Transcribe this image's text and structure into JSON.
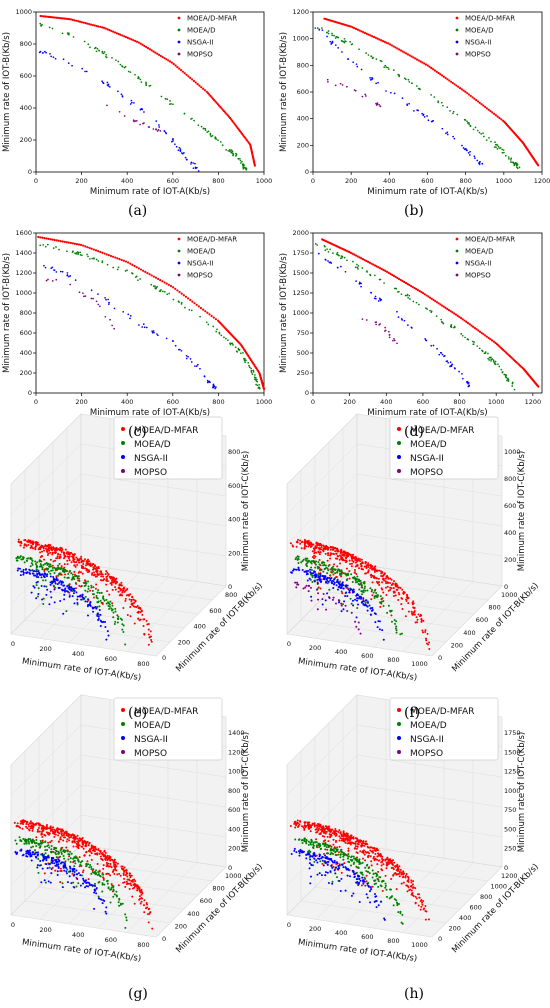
{
  "series_styles": [
    {
      "name": "MOEA/D-MFAR",
      "color": "#ff0000"
    },
    {
      "name": "MOEA/D",
      "color": "#008000"
    },
    {
      "name": "NSGA-II",
      "color": "#0000ff"
    },
    {
      "name": "MOPSO",
      "color": "#800080"
    }
  ],
  "chart_data": [
    {
      "panel": "(a)",
      "type": "scatter",
      "xlabel": "Minimum rate of IOT-A(Kb/s)",
      "ylabel": "Minimum rate of IOT-B(Kb/s)",
      "xlim": [
        0,
        1000
      ],
      "ylim": [
        0,
        1000
      ],
      "xticks": [
        0,
        200,
        400,
        600,
        800,
        1000
      ],
      "yticks": [
        0,
        200,
        400,
        600,
        800,
        1000
      ],
      "legend": [
        "MOEA/D-MFAR",
        "MOEA/D",
        "NSGA-II",
        "MOPSO"
      ],
      "series": [
        {
          "name": "MOEA/D-MFAR",
          "color": "#ff0000",
          "points": [
            [
              20,
              975
            ],
            [
              150,
              955
            ],
            [
              300,
              900
            ],
            [
              450,
              810
            ],
            [
              600,
              680
            ],
            [
              750,
              500
            ],
            [
              850,
              340
            ],
            [
              940,
              170
            ],
            [
              960,
              40
            ]
          ]
        },
        {
          "name": "MOEA/D",
          "color": "#008000",
          "points": [
            [
              20,
              920
            ],
            [
              150,
              855
            ],
            [
              300,
              740
            ],
            [
              450,
              590
            ],
            [
              600,
              420
            ],
            [
              720,
              290
            ],
            [
              830,
              160
            ],
            [
              900,
              70
            ],
            [
              920,
              10
            ]
          ]
        },
        {
          "name": "NSGA-II",
          "color": "#0000ff",
          "points": [
            [
              10,
              760
            ],
            [
              120,
              700
            ],
            [
              250,
              610
            ],
            [
              380,
              480
            ],
            [
              480,
              370
            ],
            [
              560,
              260
            ],
            [
              620,
              160
            ],
            [
              680,
              60
            ],
            [
              710,
              10
            ]
          ]
        },
        {
          "name": "MOPSO",
          "color": "#800080",
          "points": [
            [
              310,
              420
            ],
            [
              420,
              320
            ],
            [
              470,
              295
            ],
            [
              520,
              270
            ],
            [
              540,
              250
            ]
          ]
        }
      ]
    },
    {
      "panel": "(b)",
      "type": "scatter",
      "xlabel": "Minimum rate of IOT-A(Kb/s)",
      "ylabel": "Minimum rate of IOT-B(Kb/s)",
      "xlim": [
        0,
        1200
      ],
      "ylim": [
        0,
        1200
      ],
      "xticks": [
        0,
        200,
        400,
        600,
        800,
        1000,
        1200
      ],
      "yticks": [
        0,
        200,
        400,
        600,
        800,
        1000,
        1200
      ],
      "legend": [
        "MOEA/D-MFAR",
        "MOEA/D",
        "NSGA-II",
        "MOPSO"
      ],
      "series": [
        {
          "name": "MOEA/D-MFAR",
          "color": "#ff0000",
          "points": [
            [
              60,
              1150
            ],
            [
              200,
              1090
            ],
            [
              400,
              960
            ],
            [
              600,
              800
            ],
            [
              800,
              600
            ],
            [
              1000,
              380
            ],
            [
              1100,
              220
            ],
            [
              1180,
              50
            ]
          ]
        },
        {
          "name": "MOEA/D",
          "color": "#008000",
          "points": [
            [
              20,
              1090
            ],
            [
              200,
              960
            ],
            [
              400,
              780
            ],
            [
              600,
              590
            ],
            [
              800,
              380
            ],
            [
              950,
              210
            ],
            [
              1050,
              80
            ],
            [
              1080,
              20
            ]
          ]
        },
        {
          "name": "NSGA-II",
          "color": "#0000ff",
          "points": [
            [
              30,
              1080
            ],
            [
              150,
              900
            ],
            [
              300,
              700
            ],
            [
              450,
              560
            ],
            [
              600,
              400
            ],
            [
              750,
              250
            ],
            [
              850,
              100
            ],
            [
              900,
              40
            ]
          ]
        },
        {
          "name": "MOPSO",
          "color": "#800080",
          "points": [
            [
              60,
              690
            ],
            [
              150,
              650
            ],
            [
              250,
              590
            ],
            [
              330,
              520
            ],
            [
              360,
              490
            ]
          ]
        }
      ]
    },
    {
      "panel": "(c)",
      "type": "scatter",
      "xlabel": "Minimum rate of IOT-A(Kb/s)",
      "ylabel": "Minimum rate of IOT-B(Kb/s)",
      "xlim": [
        0,
        1000
      ],
      "ylim": [
        0,
        1600
      ],
      "xticks": [
        0,
        200,
        400,
        600,
        800,
        1000
      ],
      "yticks": [
        0,
        200,
        400,
        600,
        800,
        1000,
        1200,
        1400,
        1600
      ],
      "legend": [
        "MOEA/D-MFAR",
        "MOEA/D",
        "NSGA-II",
        "MOPSO"
      ],
      "series": [
        {
          "name": "MOEA/D-MFAR",
          "color": "#ff0000",
          "points": [
            [
              10,
              1560
            ],
            [
              200,
              1480
            ],
            [
              400,
              1310
            ],
            [
              600,
              1060
            ],
            [
              800,
              720
            ],
            [
              900,
              480
            ],
            [
              980,
              200
            ],
            [
              1000,
              40
            ]
          ]
        },
        {
          "name": "MOEA/D",
          "color": "#008000",
          "points": [
            [
              20,
              1490
            ],
            [
              200,
              1390
            ],
            [
              400,
              1210
            ],
            [
              600,
              960
            ],
            [
              800,
              620
            ],
            [
              900,
              400
            ],
            [
              960,
              160
            ],
            [
              980,
              40
            ]
          ]
        },
        {
          "name": "NSGA-II",
          "color": "#0000ff",
          "points": [
            [
              20,
              1290
            ],
            [
              150,
              1170
            ],
            [
              300,
              940
            ],
            [
              450,
              700
            ],
            [
              600,
              500
            ],
            [
              700,
              280
            ],
            [
              760,
              120
            ],
            [
              790,
              40
            ]
          ]
        },
        {
          "name": "MOPSO",
          "color": "#800080",
          "points": [
            [
              40,
              1130
            ],
            [
              100,
              1120
            ],
            [
              150,
              1070
            ],
            [
              200,
              990
            ],
            [
              240,
              950
            ],
            [
              280,
              870
            ],
            [
              420,
              330
            ]
          ]
        }
      ]
    },
    {
      "panel": "(d)",
      "type": "scatter",
      "xlabel": "Minimum rate of IOT-A(Kb/s)",
      "ylabel": "Minimum rate of IOT-B(Kb/s)",
      "xlim": [
        0,
        1250
      ],
      "ylim": [
        0,
        2000
      ],
      "xticks": [
        0,
        200,
        400,
        600,
        800,
        1000,
        1200
      ],
      "yticks": [
        0,
        250,
        500,
        750,
        1000,
        1250,
        1500,
        1750,
        2000
      ],
      "legend": [
        "MOEA/D-MFAR",
        "MOEA/D",
        "NSGA-II",
        "MOPSO"
      ],
      "series": [
        {
          "name": "MOEA/D-MFAR",
          "color": "#ff0000",
          "points": [
            [
              50,
              1920
            ],
            [
              200,
              1760
            ],
            [
              400,
              1520
            ],
            [
              600,
              1250
            ],
            [
              800,
              950
            ],
            [
              1000,
              620
            ],
            [
              1150,
              300
            ],
            [
              1230,
              80
            ]
          ]
        },
        {
          "name": "MOEA/D",
          "color": "#008000",
          "points": [
            [
              20,
              1870
            ],
            [
              200,
              1640
            ],
            [
              400,
              1380
            ],
            [
              600,
              1080
            ],
            [
              800,
              760
            ],
            [
              950,
              480
            ],
            [
              1050,
              220
            ],
            [
              1100,
              60
            ]
          ]
        },
        {
          "name": "NSGA-II",
          "color": "#0000ff",
          "points": [
            [
              20,
              1740
            ],
            [
              150,
              1550
            ],
            [
              300,
              1280
            ],
            [
              450,
              1000
            ],
            [
              600,
              700
            ],
            [
              700,
              480
            ],
            [
              800,
              250
            ],
            [
              860,
              80
            ]
          ]
        },
        {
          "name": "MOPSO",
          "color": "#800080",
          "points": [
            [
              230,
              950
            ],
            [
              300,
              920
            ],
            [
              350,
              870
            ],
            [
              380,
              820
            ],
            [
              400,
              780
            ],
            [
              430,
              700
            ],
            [
              460,
              580
            ]
          ]
        }
      ]
    },
    {
      "panel": "(e)",
      "type": "scatter3d",
      "xlabel": "Minimum rate of IOT-A(Kb/s)",
      "ylabel": "Minimum rate of IOT-B(Kb/s)",
      "zlabel": "Minimum rate of IOT-C(Kb/s)",
      "xticks": [
        0,
        200,
        400,
        600,
        800
      ],
      "yticks": [
        0,
        200,
        400,
        600,
        800
      ],
      "zticks": [
        0,
        200,
        400,
        600,
        800
      ],
      "legend": [
        "MOEA/D-MFAR",
        "MOEA/D",
        "NSGA-II",
        "MOPSO"
      ]
    },
    {
      "panel": "(f)",
      "type": "scatter3d",
      "xlabel": "Minimum rate of IOT-A(Kb/s)",
      "ylabel": "Minimum rate of IOT-B(Kb/s)",
      "zlabel": "Minimum rate of IOT-C(Kb/s)",
      "xticks": [
        0,
        200,
        400,
        600,
        800,
        1000
      ],
      "yticks": [
        0,
        200,
        400,
        600,
        800,
        1000
      ],
      "zticks": [
        0,
        200,
        400,
        600,
        800,
        1000
      ],
      "legend": [
        "MOEA/D-MFAR",
        "MOEA/D",
        "NSGA-II",
        "MOPSO"
      ]
    },
    {
      "panel": "(g)",
      "type": "scatter3d",
      "xlabel": "Minimum rate of IOT-A(Kb/s)",
      "ylabel": "Minimum rate of IOT-B(Kb/s)",
      "zlabel": "Minimum rate of IOT-C(Kb/s)",
      "xticks": [
        0,
        200,
        400,
        600,
        800
      ],
      "yticks": [
        0,
        200,
        400,
        600,
        800,
        1000
      ],
      "zticks": [
        0,
        200,
        400,
        600,
        800,
        1000,
        1200,
        1400
      ],
      "legend": [
        "MOEA/D-MFAR",
        "MOEA/D",
        "NSGA-II",
        "MOPSO"
      ]
    },
    {
      "panel": "(h)",
      "type": "scatter3d",
      "xlabel": "Minimum rate of IOT-A(Kb/s)",
      "ylabel": "Minimum rate of IOT-B(Kb/s)",
      "zlabel": "Minimum rate of IOT-C(Kb/s)",
      "xticks": [
        0,
        200,
        400,
        600,
        800,
        1000
      ],
      "yticks": [
        0,
        200,
        400,
        600,
        800,
        1000,
        1200
      ],
      "zticks": [
        0,
        250,
        500,
        750,
        1000,
        1250,
        1500,
        1750
      ],
      "legend": [
        "MOEA/D-MFAR",
        "MOEA/D",
        "NSGA-II",
        "MOPSO"
      ]
    }
  ]
}
